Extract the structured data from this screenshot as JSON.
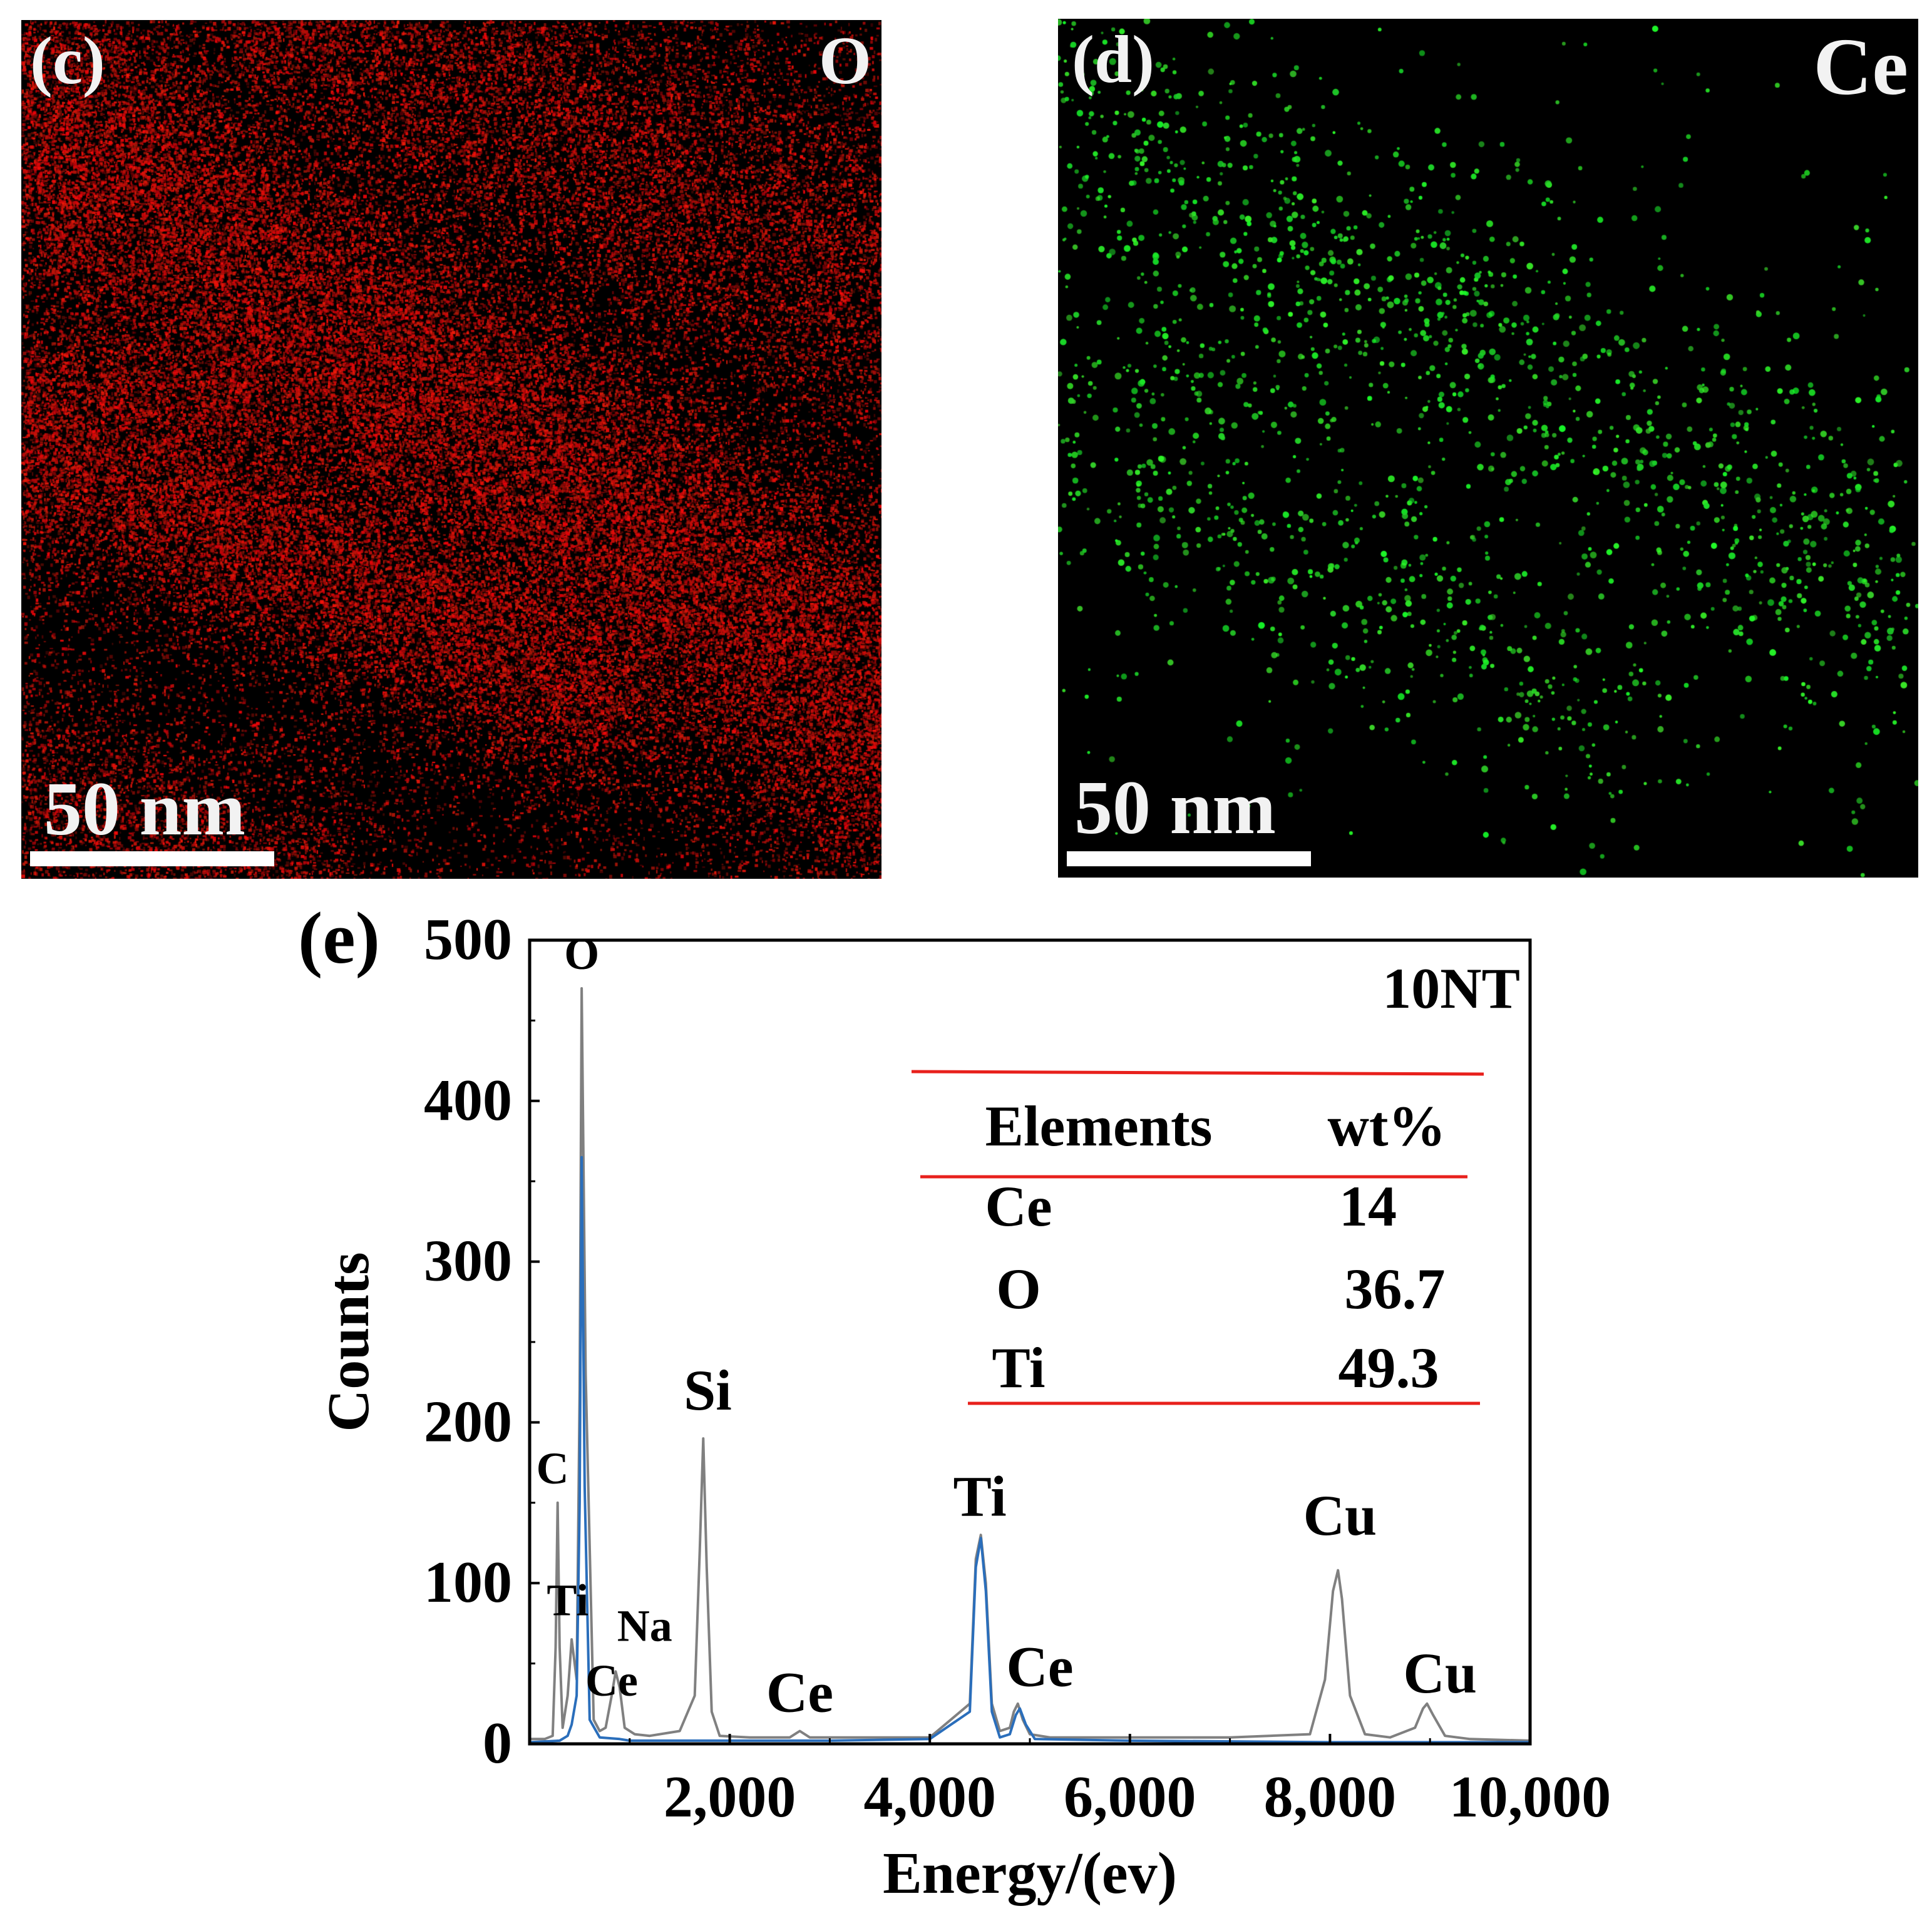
{
  "panels": [
    {
      "label": "(c)",
      "element": "O",
      "scale_bar": "50 nm",
      "color": "#ff2a1a"
    },
    {
      "label": "(d)",
      "element": "Ce",
      "scale_bar": "50 nm",
      "color": "#2cff3a"
    }
  ],
  "chart_data": {
    "type": "line",
    "panel_label": "(e)",
    "title": "",
    "sample_label": "10NT",
    "xlabel": "Energy/(ev)",
    "ylabel": "Counts",
    "xlim": [
      0,
      10000
    ],
    "ylim": [
      0,
      500
    ],
    "x_ticks": [
      2000,
      4000,
      6000,
      8000,
      10000
    ],
    "x_tick_labels": [
      "2,000",
      "4,000",
      "6,000",
      "8,000",
      "10,000"
    ],
    "y_ticks": [
      0,
      100,
      200,
      300,
      400,
      500
    ],
    "y_tick_labels": [
      "0",
      "100",
      "200",
      "300",
      "400",
      "500"
    ],
    "series": [
      {
        "color": "#808080",
        "x": [
          0,
          150,
          230,
          260,
          280,
          300,
          330,
          380,
          420,
          470,
          500,
          520,
          560,
          640,
          700,
          760,
          820,
          860,
          900,
          950,
          1050,
          1200,
          1500,
          1650,
          1700,
          1735,
          1770,
          1820,
          1900,
          2200,
          2600,
          2700,
          2800,
          3200,
          4000,
          4400,
          4460,
          4510,
          4560,
          4620,
          4700,
          4800,
          4840,
          4880,
          4930,
          5000,
          5200,
          6000,
          7000,
          7800,
          7950,
          8030,
          8080,
          8120,
          8200,
          8350,
          8600,
          8850,
          8930,
          8970,
          9030,
          9150,
          9400,
          10000
        ],
        "y": [
          3,
          3,
          5,
          60,
          150,
          60,
          10,
          30,
          65,
          40,
          220,
          470,
          230,
          15,
          8,
          10,
          30,
          45,
          35,
          10,
          6,
          5,
          8,
          30,
          120,
          190,
          110,
          20,
          5,
          4,
          4,
          8,
          4,
          4,
          4,
          25,
          115,
          130,
          100,
          25,
          8,
          10,
          20,
          25,
          15,
          6,
          4,
          4,
          4,
          6,
          40,
          95,
          108,
          90,
          30,
          6,
          4,
          10,
          22,
          25,
          18,
          5,
          3,
          2
        ]
      },
      {
        "color": "#2a6ebb",
        "x": [
          0,
          300,
          380,
          420,
          470,
          500,
          520,
          550,
          600,
          700,
          900,
          1000,
          2000,
          3000,
          4000,
          4400,
          4460,
          4510,
          4560,
          4620,
          4700,
          4800,
          4860,
          4900,
          4960,
          5050,
          6000,
          8000,
          10000
        ],
        "y": [
          1,
          2,
          5,
          12,
          30,
          150,
          365,
          160,
          15,
          4,
          3,
          2,
          2,
          2,
          3,
          20,
          110,
          128,
          95,
          20,
          4,
          6,
          18,
          22,
          12,
          3,
          2,
          1,
          1
        ]
      }
    ],
    "peak_labels": [
      {
        "text": "O",
        "x": 0.521,
        "y": 482,
        "size": "small"
      },
      {
        "text": "C",
        "x": 0.229,
        "y": 162,
        "size": "small"
      },
      {
        "text": "Ti",
        "x": 0.38,
        "y": 80,
        "size": "small"
      },
      {
        "text": "Na",
        "x": 1.15,
        "y": 64,
        "size": "small"
      },
      {
        "text": "Ce",
        "x": 0.82,
        "y": 30,
        "size": "small"
      },
      {
        "text": "Si",
        "x": 1.78,
        "y": 208,
        "size": "large"
      },
      {
        "text": "Ce",
        "x": 2.7,
        "y": 20,
        "size": "large"
      },
      {
        "text": "Ti",
        "x": 4.5,
        "y": 142,
        "size": "large"
      },
      {
        "text": "Ce",
        "x": 5.1,
        "y": 36,
        "size": "large"
      },
      {
        "text": "Cu",
        "x": 8.1,
        "y": 130,
        "size": "large"
      },
      {
        "text": "Cu",
        "x": 9.1,
        "y": 32,
        "size": "large"
      }
    ],
    "table": {
      "headers": [
        "Elements",
        "wt%"
      ],
      "rows": [
        [
          "Ce",
          "14"
        ],
        [
          "O",
          "36.7"
        ],
        [
          "Ti",
          "49.3"
        ]
      ],
      "rule_color": "#e8201c"
    }
  }
}
